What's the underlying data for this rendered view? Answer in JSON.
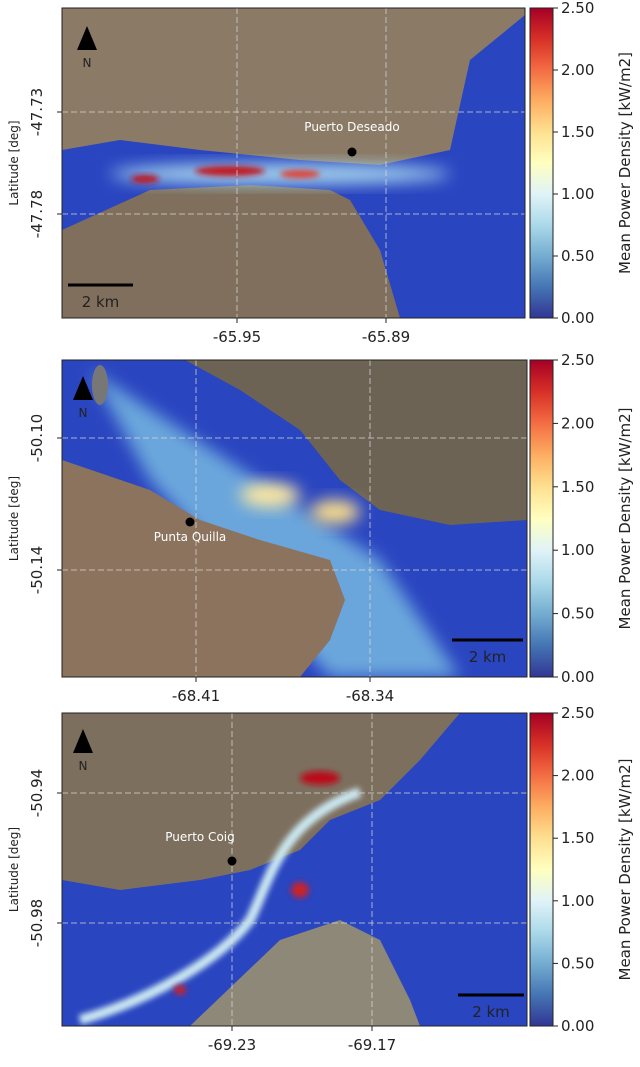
{
  "colorbar": {
    "label": "Mean Power Density [kW/m2]",
    "lim": [
      0,
      2.5
    ],
    "ticks": [
      {
        "value": 0,
        "label": "0.00"
      },
      {
        "value": 0.5,
        "label": "0.50"
      },
      {
        "value": 1,
        "label": "1.00"
      },
      {
        "value": 1.5,
        "label": "1.50"
      },
      {
        "value": 2,
        "label": "2.00"
      },
      {
        "value": 2.5,
        "label": "2.50"
      }
    ]
  },
  "panels": [
    {
      "ylabel": "Latitude [deg]",
      "yticks": [
        -47.73,
        -47.78
      ],
      "xticks": [
        -65.95,
        -65.89
      ],
      "place": "Puerto Deseado",
      "scale_bar": "2 km",
      "north": "N"
    },
    {
      "ylabel": "Latitude [deg]",
      "yticks": [
        {
          "value": -50.1,
          "label": "-50.10"
        },
        -50.14
      ],
      "xticks": [
        -68.41,
        -68.34
      ],
      "place": "Punta Quilla",
      "scale_bar": "2 km",
      "north": "N"
    },
    {
      "ylabel": "Latitude [deg]",
      "yticks": [
        -50.94,
        -50.98
      ],
      "xticks": [
        -69.23,
        -69.17
      ],
      "place": "Puerto Coig",
      "scale_bar": "2 km",
      "north": "N"
    }
  ]
}
